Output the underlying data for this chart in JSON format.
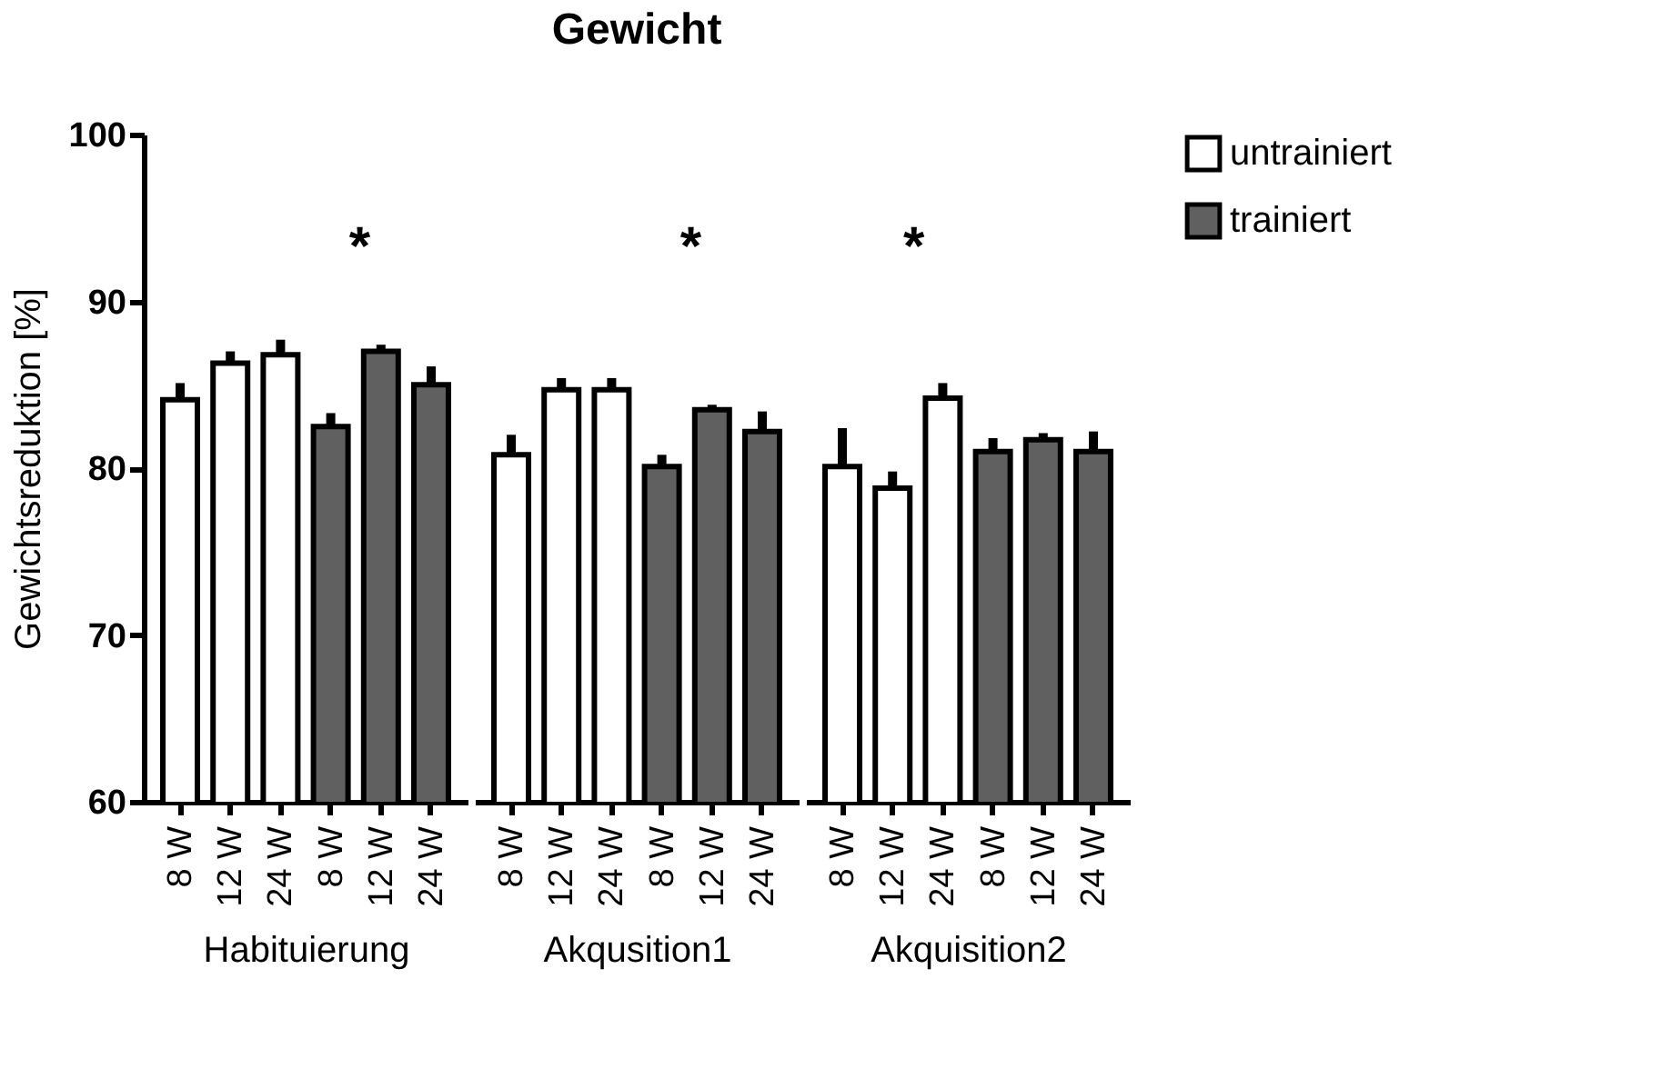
{
  "chart_data": [
    {
      "type": "bar",
      "xlabel": "Habituierung",
      "ylabel": "Gewichtsreduktion [%]",
      "categories": [
        "8 W",
        "12 W",
        "24 W",
        "8 W",
        "12 W",
        "24 W"
      ],
      "ylim": [
        60,
        100
      ],
      "yticks": [
        60,
        70,
        80,
        90,
        100
      ],
      "tick_labels": true,
      "annotations": [
        "*"
      ],
      "series": [
        {
          "color": "#ffffff",
          "values": [
            84.1,
            86.3,
            86.8,
            null,
            null,
            null
          ],
          "errors": [
            1.0,
            0.7,
            0.9,
            null,
            null,
            null
          ]
        },
        {
          "color": "#606060",
          "values": [
            null,
            null,
            null,
            82.5,
            87.0,
            85.0
          ],
          "errors": [
            null,
            null,
            null,
            0.8,
            0.4,
            1.1
          ]
        }
      ]
    },
    {
      "type": "bar",
      "title": "Gewicht",
      "xlabel": "Akqusition1",
      "categories": [
        "8 W",
        "12 W",
        "24 W",
        "8 W",
        "12 W",
        "24 W"
      ],
      "ylim": [
        60,
        100
      ],
      "tick_labels": "x",
      "annotations": [
        "*"
      ],
      "series": [
        {
          "color": "#ffffff",
          "values": [
            80.8,
            84.7,
            84.7,
            null,
            null,
            null
          ],
          "errors": [
            1.2,
            0.7,
            0.7,
            null,
            null,
            null
          ]
        },
        {
          "color": "#606060",
          "values": [
            null,
            null,
            null,
            80.1,
            83.5,
            82.2
          ],
          "errors": [
            null,
            null,
            null,
            0.7,
            0.3,
            1.2
          ]
        }
      ]
    },
    {
      "type": "bar",
      "xlabel": "Akquisition2",
      "categories": [
        "8 W",
        "12 W",
        "24 W",
        "8 W",
        "12 W",
        "24 W"
      ],
      "ylim": [
        60,
        100
      ],
      "tick_labels": "x",
      "legend": "right",
      "annotations": [
        "*"
      ],
      "series": [
        {
          "name": "untrainiert",
          "color": "#ffffff",
          "values": [
            80.1,
            78.8,
            84.2,
            null,
            null,
            null
          ],
          "errors": [
            2.3,
            1.0,
            0.9,
            null,
            null,
            null
          ]
        },
        {
          "name": "trainiert",
          "color": "#606060",
          "values": [
            null,
            null,
            null,
            81.0,
            81.7,
            81.0
          ],
          "errors": [
            null,
            null,
            null,
            0.8,
            0.4,
            1.2
          ]
        }
      ]
    }
  ]
}
